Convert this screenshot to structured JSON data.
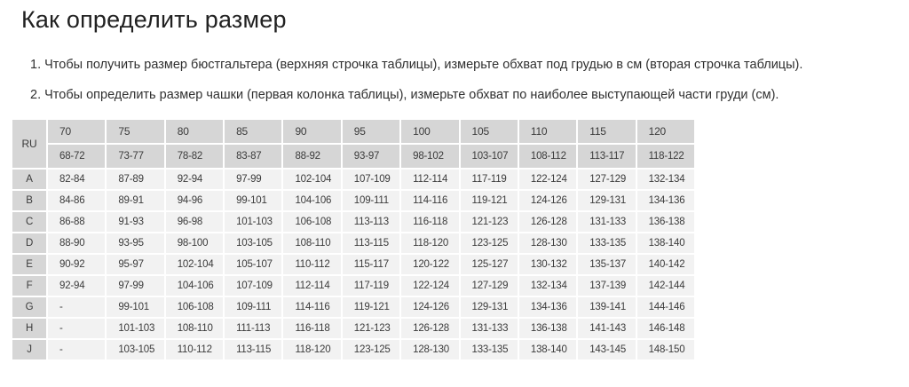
{
  "page": {
    "title": "Как определить размер"
  },
  "instructions": [
    "1. Чтобы получить размер бюстгальтера (верхняя строчка таблицы), измерьте обхват под грудью в см (вторая строчка таблицы).",
    "2. Чтобы определить размер чашки (первая колонка таблицы), измерьте обхват по наиболее выступающей части груди (см)."
  ],
  "colors": {
    "header_cell_bg": "#d6d6d6",
    "data_cell_bg": "#f2f2f2",
    "text": "#3b3b3b"
  },
  "table": {
    "corner_label": "RU",
    "band_sizes": [
      "70",
      "75",
      "80",
      "85",
      "90",
      "95",
      "100",
      "105",
      "110",
      "115",
      "120"
    ],
    "underbust_ranges": [
      "68-72",
      "73-77",
      "78-82",
      "83-87",
      "88-92",
      "93-97",
      "98-102",
      "103-107",
      "108-112",
      "113-117",
      "118-122"
    ],
    "rows": [
      {
        "cup": "A",
        "values": [
          "82-84",
          "87-89",
          "92-94",
          "97-99",
          "102-104",
          "107-109",
          "112-114",
          "117-119",
          "122-124",
          "127-129",
          "132-134"
        ]
      },
      {
        "cup": "B",
        "values": [
          "84-86",
          "89-91",
          "94-96",
          "99-101",
          "104-106",
          "109-111",
          "114-116",
          "119-121",
          "124-126",
          "129-131",
          "134-136"
        ]
      },
      {
        "cup": "C",
        "values": [
          "86-88",
          "91-93",
          "96-98",
          "101-103",
          "106-108",
          "113-113",
          "116-118",
          "121-123",
          "126-128",
          "131-133",
          "136-138"
        ]
      },
      {
        "cup": "D",
        "values": [
          "88-90",
          "93-95",
          "98-100",
          "103-105",
          "108-110",
          "113-115",
          "118-120",
          "123-125",
          "128-130",
          "133-135",
          "138-140"
        ]
      },
      {
        "cup": "E",
        "values": [
          "90-92",
          "95-97",
          "102-104",
          "105-107",
          "110-112",
          "115-117",
          "120-122",
          "125-127",
          "130-132",
          "135-137",
          "140-142"
        ]
      },
      {
        "cup": "F",
        "values": [
          "92-94",
          "97-99",
          "104-106",
          "107-109",
          "112-114",
          "117-119",
          "122-124",
          "127-129",
          "132-134",
          "137-139",
          "142-144"
        ]
      },
      {
        "cup": "G",
        "values": [
          "-",
          "99-101",
          "106-108",
          "109-111",
          "114-116",
          "119-121",
          "124-126",
          "129-131",
          "134-136",
          "139-141",
          "144-146"
        ]
      },
      {
        "cup": "H",
        "values": [
          "-",
          "101-103",
          "108-110",
          "111-113",
          "116-118",
          "121-123",
          "126-128",
          "131-133",
          "136-138",
          "141-143",
          "146-148"
        ]
      },
      {
        "cup": "J",
        "values": [
          "-",
          "103-105",
          "110-112",
          "113-115",
          "118-120",
          "123-125",
          "128-130",
          "133-135",
          "138-140",
          "143-145",
          "148-150"
        ]
      }
    ]
  }
}
